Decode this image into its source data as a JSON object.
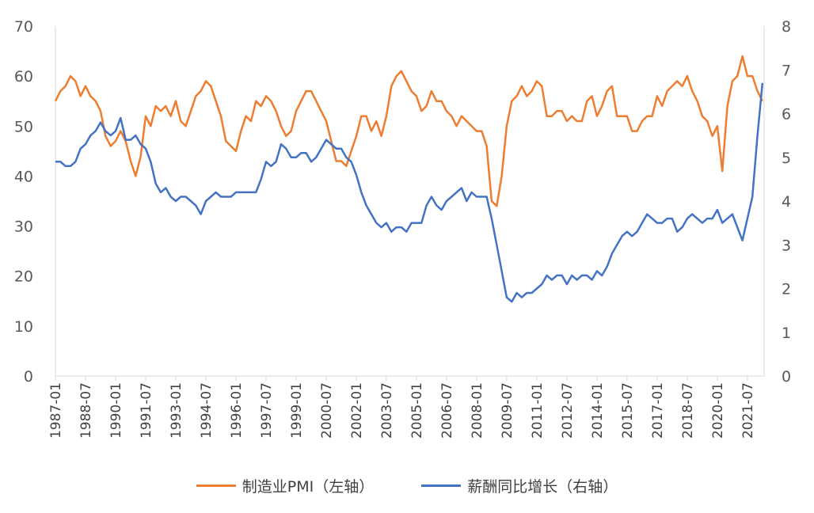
{
  "chart_data": {
    "type": "line",
    "x_ticks": [
      "1987-01",
      "1988-07",
      "1990-01",
      "1991-07",
      "1993-01",
      "1994-07",
      "1996-01",
      "1997-07",
      "1999-01",
      "2000-07",
      "2002-01",
      "2003-07",
      "2005-01",
      "2006-07",
      "2008-01",
      "2009-07",
      "2011-01",
      "2012-07",
      "2014-01",
      "2015-07",
      "2017-01",
      "2018-07",
      "2020-01",
      "2021-07"
    ],
    "y_left": {
      "lim": [
        0,
        70
      ],
      "ticks": [
        "0",
        "10",
        "20",
        "30",
        "40",
        "50",
        "60",
        "70"
      ]
    },
    "y_right": {
      "lim": [
        0,
        8
      ],
      "ticks": [
        "0",
        "1",
        "2",
        "3",
        "4",
        "5",
        "6",
        "7",
        "8"
      ]
    },
    "series": [
      {
        "name": "制造业PMI（左轴）",
        "axis": "left",
        "color": "#ED7D31",
        "points": [
          [
            "1987-01",
            55
          ],
          [
            "1987-04",
            57
          ],
          [
            "1987-07",
            58
          ],
          [
            "1987-10",
            60
          ],
          [
            "1988-01",
            59
          ],
          [
            "1988-04",
            56
          ],
          [
            "1988-07",
            58
          ],
          [
            "1988-10",
            56
          ],
          [
            "1989-01",
            55
          ],
          [
            "1989-04",
            53
          ],
          [
            "1989-07",
            48
          ],
          [
            "1989-10",
            46
          ],
          [
            "1990-01",
            47
          ],
          [
            "1990-04",
            49
          ],
          [
            "1990-07",
            47
          ],
          [
            "1990-10",
            43
          ],
          [
            "1991-01",
            40
          ],
          [
            "1991-04",
            44
          ],
          [
            "1991-07",
            52
          ],
          [
            "1991-10",
            50
          ],
          [
            "1992-01",
            54
          ],
          [
            "1992-04",
            53
          ],
          [
            "1992-07",
            54
          ],
          [
            "1992-10",
            52
          ],
          [
            "1993-01",
            55
          ],
          [
            "1993-04",
            51
          ],
          [
            "1993-07",
            50
          ],
          [
            "1993-10",
            53
          ],
          [
            "1994-01",
            56
          ],
          [
            "1994-04",
            57
          ],
          [
            "1994-07",
            59
          ],
          [
            "1994-10",
            58
          ],
          [
            "1995-01",
            55
          ],
          [
            "1995-04",
            52
          ],
          [
            "1995-07",
            47
          ],
          [
            "1995-10",
            46
          ],
          [
            "1996-01",
            45
          ],
          [
            "1996-04",
            49
          ],
          [
            "1996-07",
            52
          ],
          [
            "1996-10",
            51
          ],
          [
            "1997-01",
            55
          ],
          [
            "1997-04",
            54
          ],
          [
            "1997-07",
            56
          ],
          [
            "1997-10",
            55
          ],
          [
            "1998-01",
            53
          ],
          [
            "1998-04",
            50
          ],
          [
            "1998-07",
            48
          ],
          [
            "1998-10",
            49
          ],
          [
            "1999-01",
            53
          ],
          [
            "1999-04",
            55
          ],
          [
            "1999-07",
            57
          ],
          [
            "1999-10",
            57
          ],
          [
            "2000-01",
            55
          ],
          [
            "2000-04",
            53
          ],
          [
            "2000-07",
            51
          ],
          [
            "2000-10",
            47
          ],
          [
            "2001-01",
            43
          ],
          [
            "2001-04",
            43
          ],
          [
            "2001-07",
            42
          ],
          [
            "2001-10",
            45
          ],
          [
            "2002-01",
            48
          ],
          [
            "2002-04",
            52
          ],
          [
            "2002-07",
            52
          ],
          [
            "2002-10",
            49
          ],
          [
            "2003-01",
            51
          ],
          [
            "2003-04",
            48
          ],
          [
            "2003-07",
            52
          ],
          [
            "2003-10",
            58
          ],
          [
            "2004-01",
            60
          ],
          [
            "2004-04",
            61
          ],
          [
            "2004-07",
            59
          ],
          [
            "2004-10",
            57
          ],
          [
            "2005-01",
            56
          ],
          [
            "2005-04",
            53
          ],
          [
            "2005-07",
            54
          ],
          [
            "2005-10",
            57
          ],
          [
            "2006-01",
            55
          ],
          [
            "2006-04",
            55
          ],
          [
            "2006-07",
            53
          ],
          [
            "2006-10",
            52
          ],
          [
            "2007-01",
            50
          ],
          [
            "2007-04",
            52
          ],
          [
            "2007-07",
            51
          ],
          [
            "2007-10",
            50
          ],
          [
            "2008-01",
            49
          ],
          [
            "2008-04",
            49
          ],
          [
            "2008-07",
            46
          ],
          [
            "2008-10",
            35
          ],
          [
            "2009-01",
            34
          ],
          [
            "2009-04",
            40
          ],
          [
            "2009-07",
            50
          ],
          [
            "2009-10",
            55
          ],
          [
            "2010-01",
            56
          ],
          [
            "2010-04",
            58
          ],
          [
            "2010-07",
            56
          ],
          [
            "2010-10",
            57
          ],
          [
            "2011-01",
            59
          ],
          [
            "2011-04",
            58
          ],
          [
            "2011-07",
            52
          ],
          [
            "2011-10",
            52
          ],
          [
            "2012-01",
            53
          ],
          [
            "2012-04",
            53
          ],
          [
            "2012-07",
            51
          ],
          [
            "2012-10",
            52
          ],
          [
            "2013-01",
            51
          ],
          [
            "2013-04",
            51
          ],
          [
            "2013-07",
            55
          ],
          [
            "2013-10",
            56
          ],
          [
            "2014-01",
            52
          ],
          [
            "2014-04",
            54
          ],
          [
            "2014-07",
            57
          ],
          [
            "2014-10",
            58
          ],
          [
            "2015-01",
            52
          ],
          [
            "2015-04",
            52
          ],
          [
            "2015-07",
            52
          ],
          [
            "2015-10",
            49
          ],
          [
            "2016-01",
            49
          ],
          [
            "2016-04",
            51
          ],
          [
            "2016-07",
            52
          ],
          [
            "2016-10",
            52
          ],
          [
            "2017-01",
            56
          ],
          [
            "2017-04",
            54
          ],
          [
            "2017-07",
            57
          ],
          [
            "2017-10",
            58
          ],
          [
            "2018-01",
            59
          ],
          [
            "2018-04",
            58
          ],
          [
            "2018-07",
            60
          ],
          [
            "2018-10",
            57
          ],
          [
            "2019-01",
            55
          ],
          [
            "2019-04",
            52
          ],
          [
            "2019-07",
            51
          ],
          [
            "2019-10",
            48
          ],
          [
            "2020-01",
            50
          ],
          [
            "2020-04",
            41
          ],
          [
            "2020-07",
            54
          ],
          [
            "2020-10",
            59
          ],
          [
            "2021-01",
            60
          ],
          [
            "2021-04",
            64
          ],
          [
            "2021-07",
            60
          ],
          [
            "2021-10",
            60
          ],
          [
            "2022-01",
            57
          ],
          [
            "2022-04",
            55
          ]
        ]
      },
      {
        "name": "薪酬同比增长（右轴）",
        "axis": "right",
        "color": "#4472C4",
        "points": [
          [
            "1987-01",
            4.9
          ],
          [
            "1987-04",
            4.9
          ],
          [
            "1987-07",
            4.8
          ],
          [
            "1987-10",
            4.8
          ],
          [
            "1988-01",
            4.9
          ],
          [
            "1988-04",
            5.2
          ],
          [
            "1988-07",
            5.3
          ],
          [
            "1988-10",
            5.5
          ],
          [
            "1989-01",
            5.6
          ],
          [
            "1989-04",
            5.8
          ],
          [
            "1989-07",
            5.6
          ],
          [
            "1989-10",
            5.5
          ],
          [
            "1990-01",
            5.6
          ],
          [
            "1990-04",
            5.9
          ],
          [
            "1990-07",
            5.4
          ],
          [
            "1990-10",
            5.4
          ],
          [
            "1991-01",
            5.5
          ],
          [
            "1991-04",
            5.3
          ],
          [
            "1991-07",
            5.2
          ],
          [
            "1991-10",
            4.9
          ],
          [
            "1992-01",
            4.4
          ],
          [
            "1992-04",
            4.2
          ],
          [
            "1992-07",
            4.3
          ],
          [
            "1992-10",
            4.1
          ],
          [
            "1993-01",
            4.0
          ],
          [
            "1993-04",
            4.1
          ],
          [
            "1993-07",
            4.1
          ],
          [
            "1993-10",
            4.0
          ],
          [
            "1994-01",
            3.9
          ],
          [
            "1994-04",
            3.7
          ],
          [
            "1994-07",
            4.0
          ],
          [
            "1994-10",
            4.1
          ],
          [
            "1995-01",
            4.2
          ],
          [
            "1995-04",
            4.1
          ],
          [
            "1995-07",
            4.1
          ],
          [
            "1995-10",
            4.1
          ],
          [
            "1996-01",
            4.2
          ],
          [
            "1996-04",
            4.2
          ],
          [
            "1996-07",
            4.2
          ],
          [
            "1996-10",
            4.2
          ],
          [
            "1997-01",
            4.2
          ],
          [
            "1997-04",
            4.5
          ],
          [
            "1997-07",
            4.9
          ],
          [
            "1997-10",
            4.8
          ],
          [
            "1998-01",
            4.9
          ],
          [
            "1998-04",
            5.3
          ],
          [
            "1998-07",
            5.2
          ],
          [
            "1998-10",
            5.0
          ],
          [
            "1999-01",
            5.0
          ],
          [
            "1999-04",
            5.1
          ],
          [
            "1999-07",
            5.1
          ],
          [
            "1999-10",
            4.9
          ],
          [
            "2000-01",
            5.0
          ],
          [
            "2000-04",
            5.2
          ],
          [
            "2000-07",
            5.4
          ],
          [
            "2000-10",
            5.3
          ],
          [
            "2001-01",
            5.2
          ],
          [
            "2001-04",
            5.2
          ],
          [
            "2001-07",
            5.0
          ],
          [
            "2001-10",
            4.9
          ],
          [
            "2002-01",
            4.6
          ],
          [
            "2002-04",
            4.2
          ],
          [
            "2002-07",
            3.9
          ],
          [
            "2002-10",
            3.7
          ],
          [
            "2003-01",
            3.5
          ],
          [
            "2003-04",
            3.4
          ],
          [
            "2003-07",
            3.5
          ],
          [
            "2003-10",
            3.3
          ],
          [
            "2004-01",
            3.4
          ],
          [
            "2004-04",
            3.4
          ],
          [
            "2004-07",
            3.3
          ],
          [
            "2004-10",
            3.5
          ],
          [
            "2005-01",
            3.5
          ],
          [
            "2005-04",
            3.5
          ],
          [
            "2005-07",
            3.9
          ],
          [
            "2005-10",
            4.1
          ],
          [
            "2006-01",
            3.9
          ],
          [
            "2006-04",
            3.8
          ],
          [
            "2006-07",
            4.0
          ],
          [
            "2006-10",
            4.1
          ],
          [
            "2007-01",
            4.2
          ],
          [
            "2007-04",
            4.3
          ],
          [
            "2007-07",
            4.0
          ],
          [
            "2007-10",
            4.2
          ],
          [
            "2008-01",
            4.1
          ],
          [
            "2008-04",
            4.1
          ],
          [
            "2008-07",
            4.1
          ],
          [
            "2008-10",
            3.6
          ],
          [
            "2009-01",
            3.0
          ],
          [
            "2009-04",
            2.4
          ],
          [
            "2009-07",
            1.8
          ],
          [
            "2009-10",
            1.7
          ],
          [
            "2010-01",
            1.9
          ],
          [
            "2010-04",
            1.8
          ],
          [
            "2010-07",
            1.9
          ],
          [
            "2010-10",
            1.9
          ],
          [
            "2011-01",
            2.0
          ],
          [
            "2011-04",
            2.1
          ],
          [
            "2011-07",
            2.3
          ],
          [
            "2011-10",
            2.2
          ],
          [
            "2012-01",
            2.3
          ],
          [
            "2012-04",
            2.3
          ],
          [
            "2012-07",
            2.1
          ],
          [
            "2012-10",
            2.3
          ],
          [
            "2013-01",
            2.2
          ],
          [
            "2013-04",
            2.3
          ],
          [
            "2013-07",
            2.3
          ],
          [
            "2013-10",
            2.2
          ],
          [
            "2014-01",
            2.4
          ],
          [
            "2014-04",
            2.3
          ],
          [
            "2014-07",
            2.5
          ],
          [
            "2014-10",
            2.8
          ],
          [
            "2015-01",
            3.0
          ],
          [
            "2015-04",
            3.2
          ],
          [
            "2015-07",
            3.3
          ],
          [
            "2015-10",
            3.2
          ],
          [
            "2016-01",
            3.3
          ],
          [
            "2016-04",
            3.5
          ],
          [
            "2016-07",
            3.7
          ],
          [
            "2016-10",
            3.6
          ],
          [
            "2017-01",
            3.5
          ],
          [
            "2017-04",
            3.5
          ],
          [
            "2017-07",
            3.6
          ],
          [
            "2017-10",
            3.6
          ],
          [
            "2018-01",
            3.3
          ],
          [
            "2018-04",
            3.4
          ],
          [
            "2018-07",
            3.6
          ],
          [
            "2018-10",
            3.7
          ],
          [
            "2019-01",
            3.6
          ],
          [
            "2019-04",
            3.5
          ],
          [
            "2019-07",
            3.6
          ],
          [
            "2019-10",
            3.6
          ],
          [
            "2020-01",
            3.8
          ],
          [
            "2020-04",
            3.5
          ],
          [
            "2020-07",
            3.6
          ],
          [
            "2020-10",
            3.7
          ],
          [
            "2021-01",
            3.4
          ],
          [
            "2021-04",
            3.1
          ],
          [
            "2021-07",
            3.6
          ],
          [
            "2021-10",
            4.1
          ],
          [
            "2022-01",
            5.5
          ],
          [
            "2022-04",
            6.7
          ]
        ]
      }
    ],
    "legend": "bottom",
    "grid": false
  },
  "legend_labels": {
    "pmi": "制造业PMI（左轴）",
    "wage": "薪酬同比增长（右轴）"
  },
  "colors": {
    "pmi": "#ED7D31",
    "wage": "#4472C4"
  }
}
